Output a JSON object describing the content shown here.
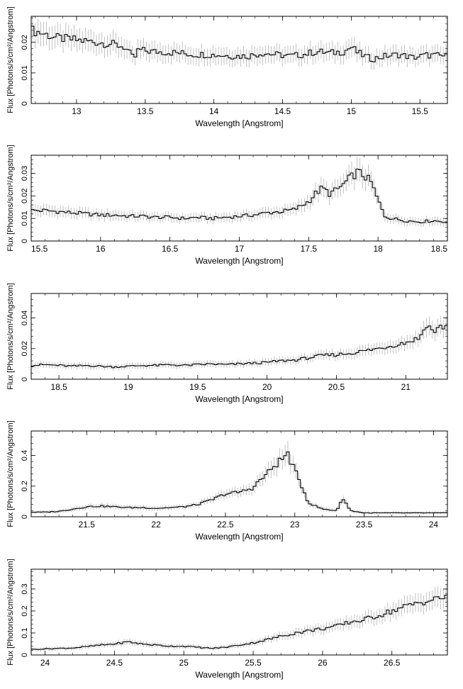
{
  "chart_data": [
    {
      "type": "line",
      "xlabel": "Wavelength [Angstrom]",
      "ylabel": "Flux [Photons/s/cm²/Angstrom]",
      "xlim": [
        12.67,
        15.7
      ],
      "ylim": [
        0,
        0.0285
      ],
      "xticks": [
        13,
        13.5,
        14,
        14.5,
        15,
        15.5
      ],
      "xtick_labels": [
        "13",
        "13.5",
        "14",
        "14.5",
        "15",
        "15.5"
      ],
      "yticks": [
        0,
        0.01,
        0.02
      ],
      "ytick_labels": [
        "0",
        "0.01",
        "0.02"
      ],
      "series": [
        {
          "x": [
            12.67,
            12.75,
            12.85,
            12.95,
            13.05,
            13.15,
            13.25,
            13.35,
            13.42,
            13.45,
            13.55,
            13.65,
            13.75,
            13.85,
            13.95,
            14.05,
            14.15,
            14.25,
            14.35,
            14.45,
            14.55,
            14.65,
            14.75,
            14.85,
            14.95,
            15.0,
            15.05,
            15.15,
            15.25,
            15.35,
            15.45,
            15.55,
            15.7
          ],
          "y": [
            0.024,
            0.023,
            0.0215,
            0.021,
            0.0205,
            0.02,
            0.0195,
            0.0185,
            0.0145,
            0.0175,
            0.017,
            0.0168,
            0.0165,
            0.016,
            0.016,
            0.0158,
            0.0155,
            0.0155,
            0.0165,
            0.016,
            0.0155,
            0.016,
            0.017,
            0.0165,
            0.017,
            0.0185,
            0.0165,
            0.0145,
            0.0155,
            0.016,
            0.015,
            0.0158,
            0.0155
          ]
        }
      ]
    },
    {
      "type": "line",
      "xlabel": "Wavelength [Angstrom]",
      "ylabel": "Flux [Photons/s/cm²/Angstrom]",
      "xlim": [
        15.5,
        18.5
      ],
      "ylim": [
        0,
        0.038
      ],
      "xticks": [
        15.5,
        16,
        16.5,
        17,
        17.5,
        18,
        18.5
      ],
      "xtick_labels": [
        "15.5",
        "16",
        "16.5",
        "17",
        "17.5",
        "18",
        "18.5"
      ],
      "yticks": [
        0,
        0.01,
        0.02,
        0.03
      ],
      "ytick_labels": [
        "0",
        "0.01",
        "0.02",
        "0.03"
      ],
      "series": [
        {
          "x": [
            15.5,
            15.6,
            15.7,
            15.8,
            15.9,
            16.0,
            16.1,
            16.2,
            16.3,
            16.4,
            16.5,
            16.6,
            16.7,
            16.8,
            16.9,
            17.0,
            17.1,
            17.2,
            17.3,
            17.4,
            17.5,
            17.55,
            17.6,
            17.65,
            17.7,
            17.75,
            17.8,
            17.85,
            17.9,
            17.95,
            18.0,
            18.05,
            18.1,
            18.2,
            18.3,
            18.4,
            18.5
          ],
          "y": [
            0.0135,
            0.0135,
            0.013,
            0.0125,
            0.012,
            0.0115,
            0.0115,
            0.011,
            0.011,
            0.0105,
            0.0105,
            0.01,
            0.0105,
            0.01,
            0.0105,
            0.011,
            0.0115,
            0.0125,
            0.013,
            0.014,
            0.0175,
            0.021,
            0.0235,
            0.021,
            0.0225,
            0.025,
            0.028,
            0.0305,
            0.029,
            0.026,
            0.018,
            0.011,
            0.01,
            0.009,
            0.0085,
            0.009,
            0.0085
          ]
        }
      ]
    },
    {
      "type": "line",
      "xlabel": "Wavelength [Angstrom]",
      "ylabel": "Flux [Photons/s/cm²/Angstrom]",
      "xlim": [
        18.3,
        21.3
      ],
      "ylim": [
        0,
        0.056
      ],
      "xticks": [
        18.5,
        19,
        19.5,
        20,
        20.5,
        21
      ],
      "xtick_labels": [
        "18.5",
        "19",
        "19.5",
        "20",
        "20.5",
        "21"
      ],
      "yticks": [
        0,
        0.02,
        0.04
      ],
      "ytick_labels": [
        "0",
        "0.02",
        "0.04"
      ],
      "series": [
        {
          "x": [
            18.3,
            18.4,
            18.5,
            18.6,
            18.7,
            18.8,
            18.9,
            19.0,
            19.1,
            19.2,
            19.3,
            19.4,
            19.5,
            19.6,
            19.7,
            19.8,
            19.9,
            20.0,
            20.1,
            20.2,
            20.3,
            20.4,
            20.5,
            20.6,
            20.7,
            20.8,
            20.9,
            21.0,
            21.1,
            21.15,
            21.2,
            21.25,
            21.3
          ],
          "y": [
            0.009,
            0.0095,
            0.009,
            0.0085,
            0.009,
            0.0085,
            0.008,
            0.0085,
            0.009,
            0.009,
            0.0095,
            0.009,
            0.0095,
            0.01,
            0.0095,
            0.01,
            0.0105,
            0.011,
            0.012,
            0.0125,
            0.014,
            0.0155,
            0.016,
            0.017,
            0.0185,
            0.02,
            0.022,
            0.024,
            0.027,
            0.036,
            0.031,
            0.034,
            0.035
          ]
        }
      ]
    },
    {
      "type": "line",
      "xlabel": "Wavelength [Angstrom]",
      "ylabel": "Flux [Photons/s/cm²/Angstrom]",
      "xlim": [
        21.1,
        24.1
      ],
      "ylim": [
        0,
        0.56
      ],
      "xticks": [
        21.5,
        22,
        22.5,
        23,
        23.5,
        24
      ],
      "xtick_labels": [
        "21.5",
        "22",
        "22.5",
        "23",
        "23.5",
        "24"
      ],
      "yticks": [
        0,
        0.2,
        0.4
      ],
      "ytick_labels": [
        "0",
        "0.2",
        "0.4"
      ],
      "series": [
        {
          "x": [
            21.1,
            21.2,
            21.3,
            21.4,
            21.5,
            21.6,
            21.7,
            21.8,
            21.9,
            22.0,
            22.1,
            22.2,
            22.3,
            22.4,
            22.5,
            22.6,
            22.7,
            22.75,
            22.8,
            22.85,
            22.9,
            22.95,
            23.0,
            23.05,
            23.1,
            23.2,
            23.3,
            23.35,
            23.4,
            23.5,
            23.6,
            23.7,
            23.8,
            23.9,
            24.0,
            24.1
          ],
          "y": [
            0.03,
            0.03,
            0.035,
            0.05,
            0.065,
            0.07,
            0.065,
            0.06,
            0.06,
            0.055,
            0.06,
            0.065,
            0.08,
            0.11,
            0.15,
            0.16,
            0.19,
            0.24,
            0.28,
            0.33,
            0.37,
            0.41,
            0.3,
            0.2,
            0.09,
            0.05,
            0.04,
            0.12,
            0.04,
            0.025,
            0.025,
            0.025,
            0.025,
            0.025,
            0.025,
            0.025
          ]
        }
      ]
    },
    {
      "type": "line",
      "xlabel": "Wavelength [Angstrom]",
      "ylabel": "Flux [Photons/s/cm²/Angstrom]",
      "xlim": [
        23.9,
        26.9
      ],
      "ylim": [
        0,
        0.39
      ],
      "xticks": [
        24,
        24.5,
        25,
        25.5,
        26,
        26.5
      ],
      "xtick_labels": [
        "24",
        "24.5",
        "25",
        "25.5",
        "26",
        "26.5"
      ],
      "yticks": [
        0,
        0.1,
        0.2,
        0.3
      ],
      "ytick_labels": [
        "0",
        "0.1",
        "0.2",
        "0.3"
      ],
      "series": [
        {
          "x": [
            23.9,
            24.0,
            24.1,
            24.2,
            24.3,
            24.4,
            24.5,
            24.6,
            24.7,
            24.8,
            24.9,
            25.0,
            25.1,
            25.2,
            25.3,
            25.4,
            25.5,
            25.6,
            25.7,
            25.8,
            25.9,
            26.0,
            26.1,
            26.2,
            26.3,
            26.4,
            26.5,
            26.6,
            26.7,
            26.8,
            26.9
          ],
          "y": [
            0.025,
            0.028,
            0.03,
            0.032,
            0.038,
            0.045,
            0.05,
            0.06,
            0.05,
            0.045,
            0.04,
            0.04,
            0.035,
            0.03,
            0.035,
            0.045,
            0.055,
            0.07,
            0.085,
            0.1,
            0.11,
            0.12,
            0.13,
            0.15,
            0.16,
            0.18,
            0.2,
            0.22,
            0.24,
            0.25,
            0.27
          ]
        }
      ]
    }
  ]
}
